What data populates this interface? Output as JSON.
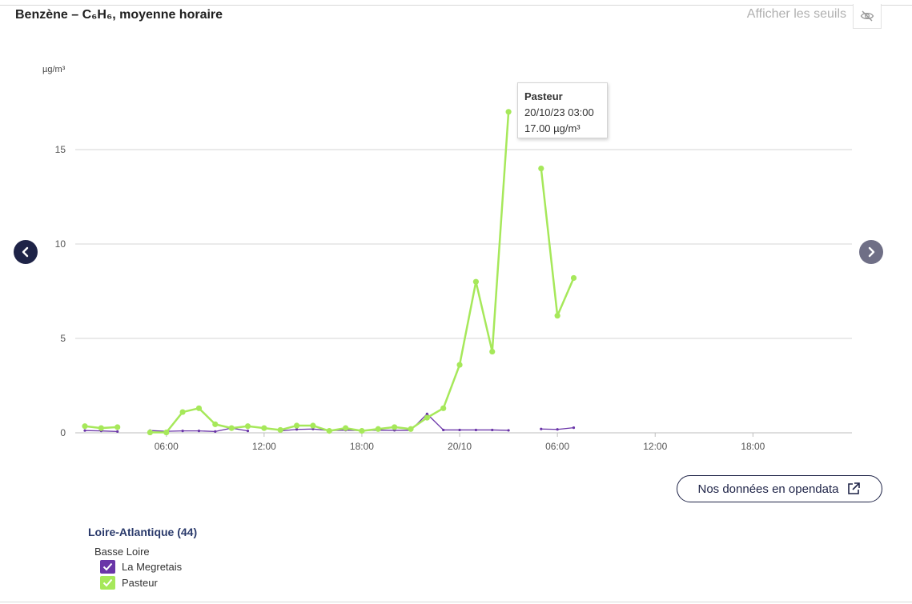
{
  "header": {
    "title": "Benzène – C₆H₆, moyenne horaire",
    "thresholds_label": "Afficher les seuils"
  },
  "tooltip": {
    "station": "Pasteur",
    "datetime": "20/10/23 03:00",
    "value": "17.00 µg/m³"
  },
  "opendata_button": {
    "label": "Nos données en opendata"
  },
  "legend": {
    "department": "Loire-Atlantique (44)",
    "zone": "Basse Loire",
    "items": [
      {
        "label": "La Megretais",
        "color": "#6a35a8"
      },
      {
        "label": "Pasteur",
        "color": "#a6e85a"
      }
    ]
  },
  "chart_data": {
    "type": "line",
    "unit": "µg/m³",
    "x_unit": "hours, 2023-10-19 01:00 to 2023-10-20 23:00",
    "x_ticks": [
      {
        "x": 6,
        "label": "06:00"
      },
      {
        "x": 12,
        "label": "12:00"
      },
      {
        "x": 18,
        "label": "18:00"
      },
      {
        "x": 24,
        "label": "20/10"
      },
      {
        "x": 30,
        "label": "06:00"
      },
      {
        "x": 36,
        "label": "12:00"
      },
      {
        "x": 42,
        "label": "18:00"
      }
    ],
    "xlim": [
      1,
      47
    ],
    "ylim": [
      0,
      18.5
    ],
    "y_ticks": [
      0,
      5,
      10,
      15
    ],
    "grid": true,
    "series": [
      {
        "name": "La Megretais",
        "color": "#6a35a8",
        "x": [
          1,
          2,
          3,
          4,
          5,
          6,
          7,
          8,
          9,
          10,
          11,
          12,
          13,
          14,
          15,
          16,
          17,
          18,
          19,
          20,
          21,
          22,
          23,
          24,
          25,
          26,
          27,
          28,
          29,
          30,
          31,
          32
        ],
        "values": [
          0.12,
          0.1,
          0.07,
          null,
          0.12,
          0.08,
          0.1,
          0.1,
          0.07,
          0.25,
          0.1,
          null,
          0.1,
          0.18,
          0.2,
          0.12,
          0.14,
          0.12,
          0.14,
          0.13,
          0.13,
          1.0,
          0.15,
          0.15,
          0.15,
          0.15,
          0.13,
          null,
          0.2,
          0.18,
          0.27,
          null
        ]
      },
      {
        "name": "Pasteur",
        "color": "#a6e85a",
        "x": [
          1,
          2,
          3,
          4,
          5,
          6,
          7,
          8,
          9,
          10,
          11,
          12,
          13,
          14,
          15,
          16,
          17,
          18,
          19,
          20,
          21,
          22,
          23,
          24,
          25,
          26,
          27,
          28,
          29,
          30,
          31,
          32
        ],
        "values": [
          0.35,
          0.25,
          0.3,
          null,
          0.02,
          0.02,
          1.1,
          1.3,
          0.45,
          0.25,
          0.35,
          0.25,
          0.15,
          0.38,
          0.38,
          0.1,
          0.25,
          0.1,
          0.2,
          0.3,
          0.2,
          0.8,
          1.3,
          3.6,
          8.0,
          4.3,
          17.0,
          null,
          14.0,
          6.2,
          8.2,
          null
        ]
      }
    ]
  }
}
